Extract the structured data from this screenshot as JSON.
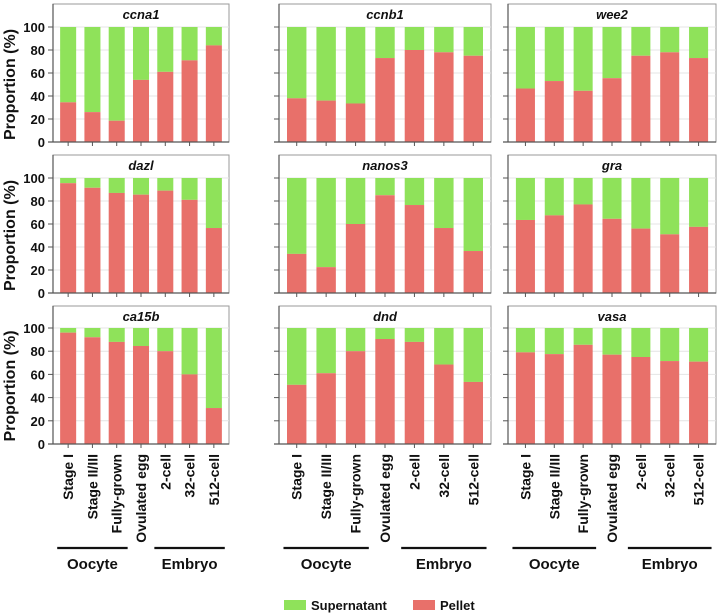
{
  "chart_data": {
    "type": "bar",
    "stacked": true,
    "ylabel": "Proportion (%)",
    "ylim": [
      0,
      100
    ],
    "yticks": [
      0,
      20,
      40,
      60,
      80,
      100
    ],
    "grid": true,
    "categories": [
      "Stage I",
      "Stage II/III",
      "Fully-grown",
      "Ovulated egg",
      "2-cell",
      "32-cell",
      "512-cell"
    ],
    "groups": [
      {
        "label": "Oocyte",
        "from": 0,
        "to": 2
      },
      {
        "label": "Embryo",
        "from": 4,
        "to": 6
      }
    ],
    "legend": {
      "placement": "bottom",
      "items": [
        {
          "name": "Supernatant",
          "color": "#8fe25a"
        },
        {
          "name": "Pellet",
          "color": "#e8706a"
        }
      ]
    },
    "colors": {
      "pellet": "#e8706a",
      "supernatant": "#8fe25a",
      "grid": "#e4e4e4",
      "axis": "#555555"
    },
    "panels": [
      {
        "title": "ccna1",
        "pellet": [
          34.5,
          26,
          18.5,
          54,
          61,
          71,
          84
        ]
      },
      {
        "title": "ccnb1",
        "pellet": [
          38,
          36,
          33.5,
          73,
          80,
          78,
          75
        ]
      },
      {
        "title": "wee2",
        "pellet": [
          46.5,
          53,
          44.5,
          55.5,
          75,
          78,
          73
        ]
      },
      {
        "title": "dazl",
        "pellet": [
          95.5,
          91.5,
          87,
          85.5,
          89,
          81,
          56.5
        ]
      },
      {
        "title": "nanos3",
        "pellet": [
          34,
          22.5,
          60,
          85,
          76.5,
          56.5,
          36.5
        ]
      },
      {
        "title": "gra",
        "pellet": [
          63.5,
          67.5,
          77,
          64.5,
          56,
          51,
          57.5
        ]
      },
      {
        "title": "ca15b",
        "pellet": [
          96,
          92,
          88,
          84.5,
          80,
          60,
          31
        ]
      },
      {
        "title": "dnd",
        "pellet": [
          51,
          61,
          80,
          90.5,
          88,
          68.5,
          53.5
        ]
      },
      {
        "title": "vasa",
        "pellet": [
          79,
          77.5,
          85.5,
          77,
          75,
          71.5,
          71
        ]
      }
    ]
  }
}
